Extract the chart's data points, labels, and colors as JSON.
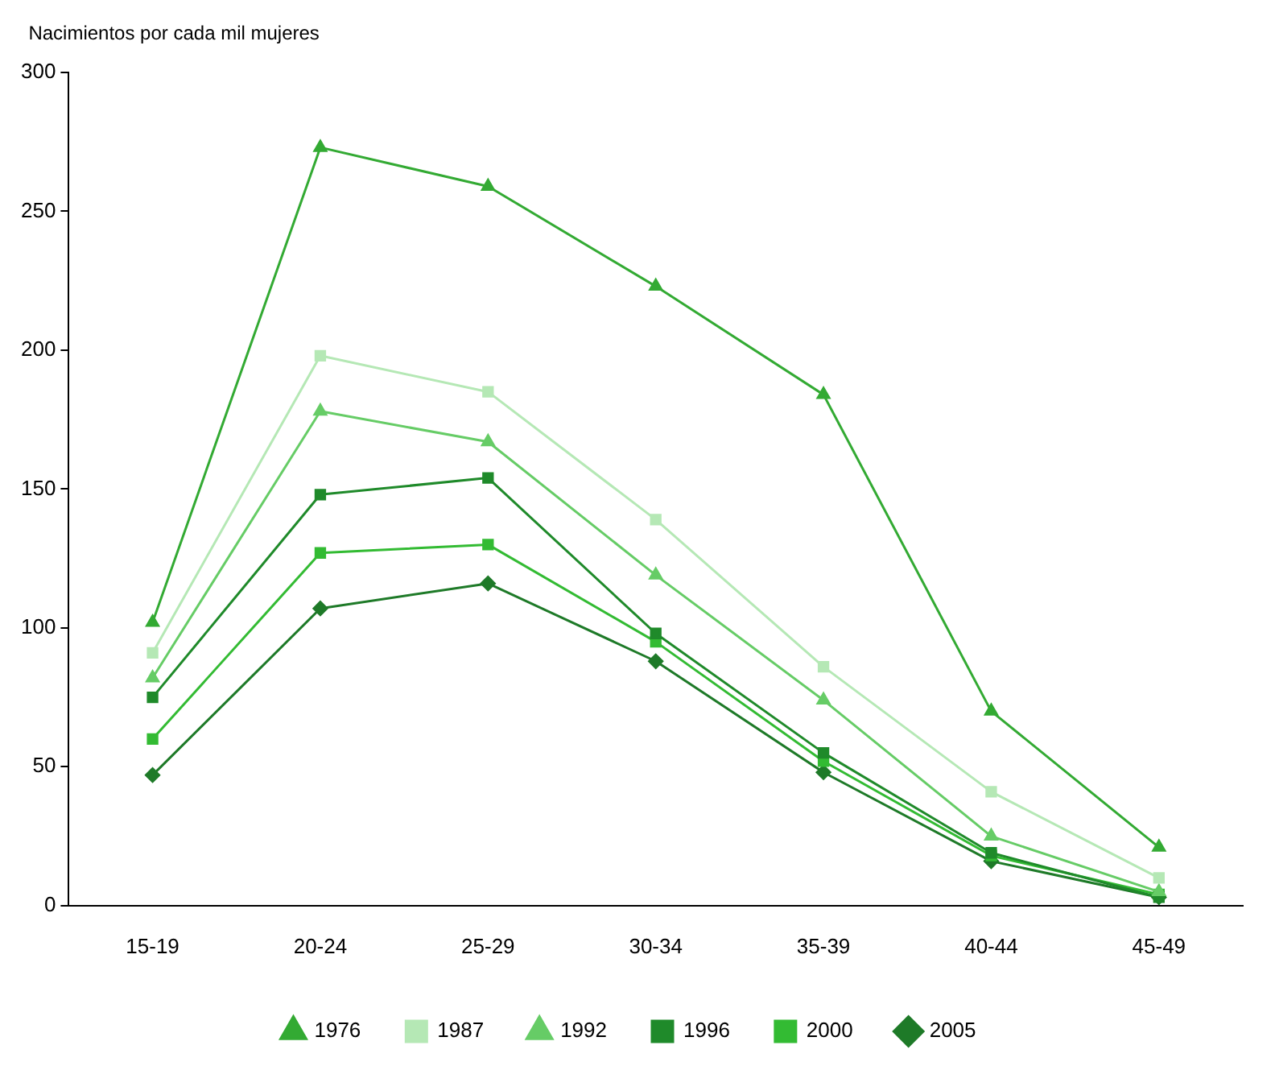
{
  "chart_data": {
    "type": "line",
    "ylabel": "Nacimientos por cada mil mujeres",
    "categories": [
      "15-19",
      "20-24",
      "25-29",
      "30-34",
      "35-39",
      "40-44",
      "45-49"
    ],
    "ylim": [
      0,
      300
    ],
    "yticks": [
      0,
      50,
      100,
      150,
      200,
      250,
      300
    ],
    "grid": false,
    "legend": "bottom",
    "line_style": "solid",
    "series": [
      {
        "name": "1976",
        "color": "#33aa33",
        "marker": "triangle",
        "values": [
          102,
          273,
          259,
          223,
          184,
          70,
          21
        ]
      },
      {
        "name": "1987",
        "color": "#b5e8b5",
        "marker": "square",
        "values": [
          91,
          198,
          185,
          139,
          86,
          41,
          10
        ]
      },
      {
        "name": "1992",
        "color": "#66cc66",
        "marker": "triangle",
        "values": [
          82,
          178,
          167,
          119,
          74,
          25,
          5
        ]
      },
      {
        "name": "1996",
        "color": "#1f8a2a",
        "marker": "square",
        "values": [
          75,
          148,
          154,
          98,
          55,
          19,
          3
        ]
      },
      {
        "name": "2000",
        "color": "#33bb33",
        "marker": "square",
        "values": [
          60,
          127,
          130,
          95,
          52,
          18,
          4
        ]
      },
      {
        "name": "2005",
        "color": "#1e7a28",
        "marker": "diamond",
        "values": [
          47,
          107,
          116,
          88,
          48,
          16,
          3
        ]
      }
    ]
  }
}
